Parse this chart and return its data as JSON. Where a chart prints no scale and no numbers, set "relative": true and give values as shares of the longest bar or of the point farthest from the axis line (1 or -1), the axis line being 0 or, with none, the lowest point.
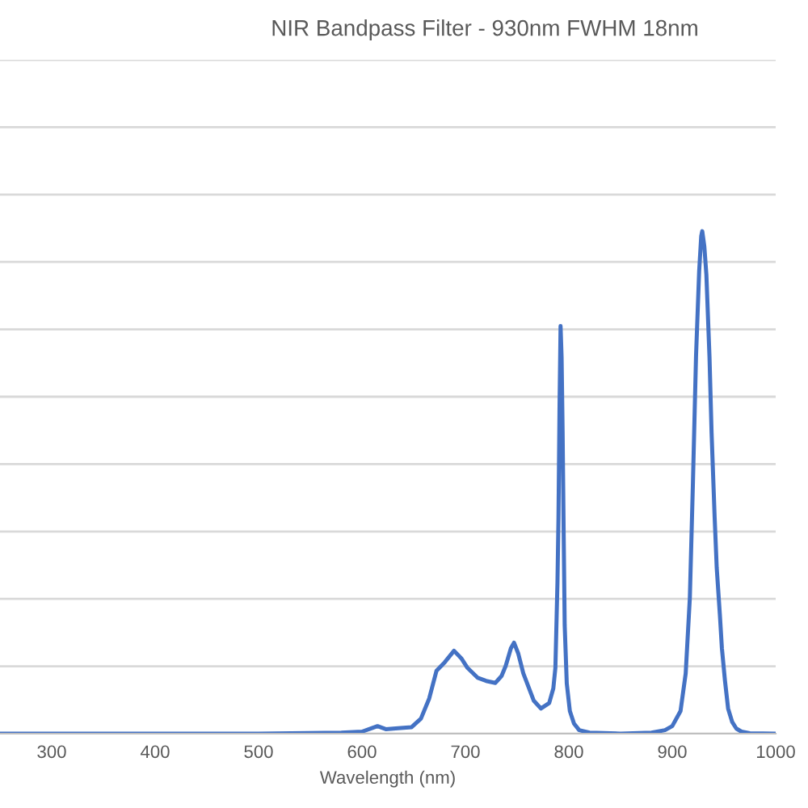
{
  "chart_data": {
    "type": "line",
    "title": "NIR Bandpass Filter - 930nm FWHM 18nm",
    "xlabel": "Wavelength (nm)",
    "relative": true,
    "xlim": [
      250,
      1000
    ],
    "xticks": [
      300,
      400,
      500,
      600,
      700,
      800,
      900,
      1000
    ],
    "series": [
      {
        "color": "#4472c4",
        "x": [
          250,
          300,
          400,
          500,
          580,
          600,
          608,
          615,
          623,
          635,
          648,
          657,
          665,
          672,
          680,
          689,
          696,
          702,
          712,
          720,
          729,
          735,
          739,
          744,
          747,
          751,
          756,
          766,
          773,
          781,
          785,
          787,
          789,
          790,
          791,
          792,
          793,
          794,
          795,
          796,
          798,
          801,
          805,
          810,
          820,
          850,
          880,
          893,
          900,
          908,
          913,
          917,
          920,
          923,
          926,
          928,
          929,
          931,
          933,
          936,
          938,
          941,
          943,
          946,
          948,
          951,
          954,
          958,
          962,
          967,
          975,
          1000
        ],
        "values": [
          0,
          0,
          0,
          0,
          0.002,
          0.004,
          0.01,
          0.015,
          0.009,
          0.011,
          0.013,
          0.03,
          0.07,
          0.125,
          0.142,
          0.165,
          0.15,
          0.131,
          0.111,
          0.105,
          0.101,
          0.115,
          0.135,
          0.17,
          0.181,
          0.16,
          0.12,
          0.066,
          0.05,
          0.061,
          0.09,
          0.131,
          0.3,
          0.43,
          0.65,
          0.811,
          0.75,
          0.6,
          0.4,
          0.216,
          0.1,
          0.045,
          0.02,
          0.007,
          0.002,
          0,
          0.002,
          0.007,
          0.015,
          0.045,
          0.12,
          0.27,
          0.5,
          0.752,
          0.92,
          0.99,
          1,
          0.97,
          0.913,
          0.75,
          0.6,
          0.43,
          0.33,
          0.238,
          0.17,
          0.105,
          0.05,
          0.023,
          0.01,
          0.004,
          0.001,
          0
        ]
      }
    ],
    "grid": "y",
    "marker": "none",
    "line_style": "solid"
  }
}
